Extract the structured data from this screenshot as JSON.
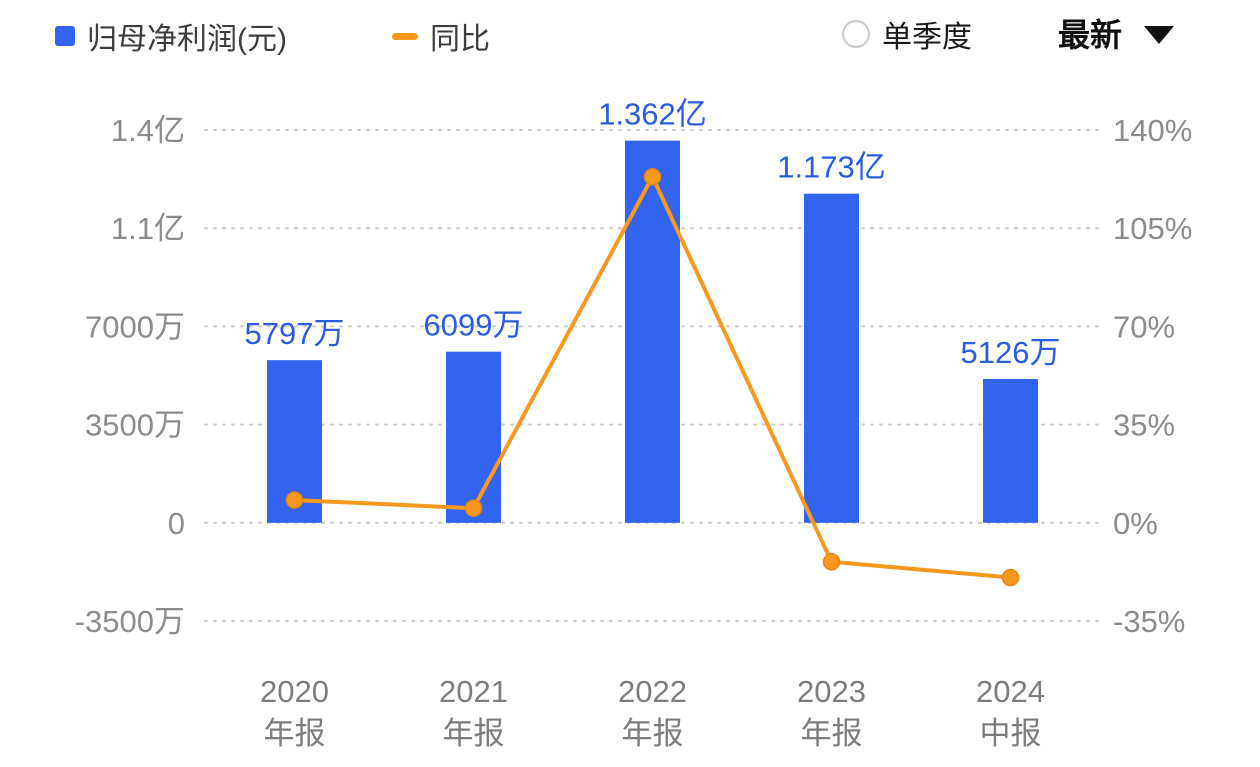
{
  "legend": {
    "profit_label": "归母净利润(元)",
    "yoy_label": "同比"
  },
  "controls": {
    "quarter_toggle_label": "单季度",
    "period_selector_label": "最新"
  },
  "colors": {
    "bar": "#3264f0",
    "line": "#f8981d",
    "value_label": "#2a5ce0",
    "axis_text": "#8c8c8c",
    "grid": "#c9c9c9"
  },
  "chart_data": {
    "type": "combo",
    "categories": [
      {
        "line1": "2020",
        "line2": "年报"
      },
      {
        "line1": "2021",
        "line2": "年报"
      },
      {
        "line1": "2022",
        "line2": "年报"
      },
      {
        "line1": "2023",
        "line2": "年报"
      },
      {
        "line1": "2024",
        "line2": "中报"
      }
    ],
    "series": [
      {
        "name": "归母净利润(元)",
        "type": "bar",
        "values_wan": [
          5797,
          6099,
          13620,
          11730,
          5126
        ],
        "labels": [
          "5797万",
          "6099万",
          "1.362亿",
          "1.173亿",
          "5126万"
        ]
      },
      {
        "name": "同比",
        "type": "line",
        "values_pct": [
          8.1,
          5.2,
          123.3,
          -13.9,
          -19.5
        ]
      }
    ],
    "left_axis": {
      "ticks": [
        "1.4亿",
        "1.1亿",
        "7000万",
        "3500万",
        "0",
        "-3500万"
      ],
      "max_wan": 14000,
      "min_wan": -3500,
      "step_wan": 3500
    },
    "right_axis": {
      "ticks": [
        "140%",
        "105%",
        "70%",
        "35%",
        "0%",
        "-35%"
      ],
      "max_pct": 140,
      "min_pct": -35,
      "step_pct": 35
    },
    "grid": "dotted-horizontal",
    "legend_position": "top-left"
  }
}
